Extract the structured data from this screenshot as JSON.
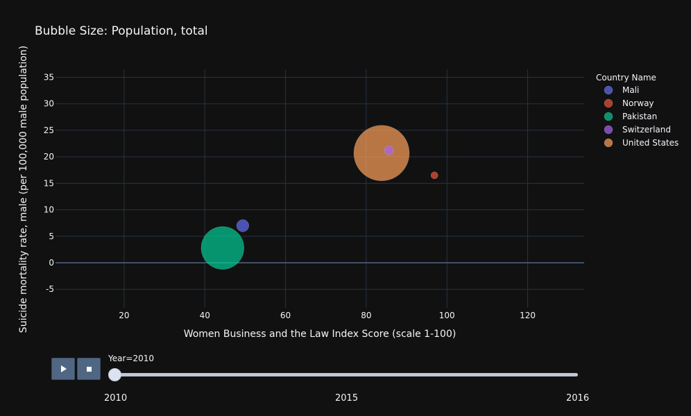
{
  "chart_data": {
    "type": "scatter",
    "title": "Bubble Size: Population, total",
    "xlabel": "Women Business and the Law Index Score (scale 1-100)",
    "ylabel": "Suicide mortality rate, male (per 100,000 male population)",
    "xlim": [
      3,
      134
    ],
    "ylim": [
      -8.5,
      36.5
    ],
    "xticks": [
      20,
      40,
      60,
      80,
      100,
      120
    ],
    "yticks": [
      -5,
      0,
      5,
      10,
      15,
      20,
      25,
      30,
      35
    ],
    "grid": true,
    "legend": {
      "title": "Country Name",
      "placement": "right"
    },
    "series": [
      {
        "name": "Mali",
        "x": 49.4,
        "y": 7.0,
        "size": 15,
        "color": "#636efa"
      },
      {
        "name": "Norway",
        "x": 96.9,
        "y": 16.5,
        "size": 5,
        "color": "#ef553b"
      },
      {
        "name": "Pakistan",
        "x": 44.4,
        "y": 2.8,
        "size": 184,
        "color": "#00cc96"
      },
      {
        "name": "Switzerland",
        "x": 85.6,
        "y": 21.2,
        "size": 8,
        "color": "#ab63fa"
      },
      {
        "name": "United States",
        "x": 83.8,
        "y": 20.7,
        "size": 309,
        "color": "#ffa15a"
      }
    ]
  },
  "slider": {
    "current_label": "Year=2010",
    "steps": [
      "2010",
      "2015",
      "2016"
    ],
    "current_index": 0
  },
  "controls": {
    "play": "play-icon",
    "stop": "stop-icon"
  }
}
